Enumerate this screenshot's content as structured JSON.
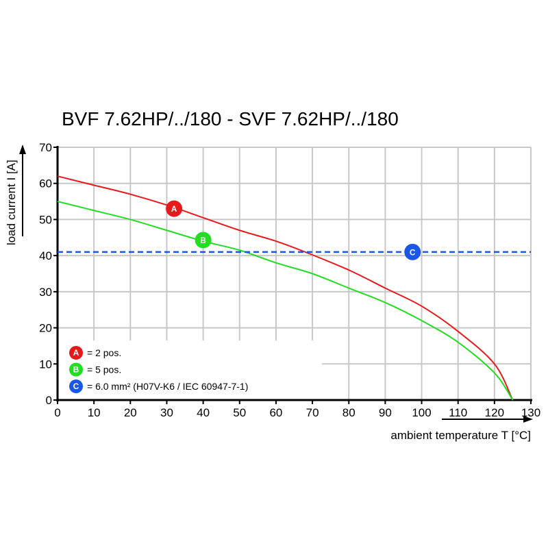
{
  "chart_data": {
    "type": "line",
    "title": "BVF 7.62HP/../180 - SVF 7.62HP/../180",
    "xlabel": "ambient temperature T [°C]",
    "ylabel": "load current I [A]",
    "xlim": [
      0,
      130
    ],
    "ylim": [
      0,
      70
    ],
    "xticks": [
      0,
      10,
      20,
      30,
      40,
      50,
      60,
      70,
      80,
      90,
      100,
      110,
      120,
      130
    ],
    "yticks": [
      0,
      10,
      20,
      30,
      40,
      50,
      60,
      70
    ],
    "grid": true,
    "legend_position": "bottom-left",
    "series": [
      {
        "name": "A",
        "legend": "= 2 pos.",
        "color": "#e8191b",
        "marker_x": 32,
        "marker_y": 53,
        "x": [
          0,
          10,
          20,
          30,
          40,
          50,
          60,
          68,
          80,
          90,
          100,
          110,
          120,
          125
        ],
        "y": [
          62,
          59.5,
          57,
          54,
          50.5,
          47,
          44,
          41,
          36,
          31,
          26,
          19,
          10,
          0
        ]
      },
      {
        "name": "B",
        "legend": "= 5 pos.",
        "color": "#22dd22",
        "marker_x": 40,
        "marker_y": 44.3,
        "x": [
          0,
          10,
          20,
          30,
          40,
          50,
          60,
          70,
          80,
          90,
          100,
          110,
          120,
          125
        ],
        "y": [
          55,
          52.5,
          50,
          47,
          44,
          41.5,
          38,
          35,
          31,
          27,
          22,
          16,
          7.5,
          0
        ]
      },
      {
        "name": "C",
        "legend": "= 6.0 mm² (H07V-K6 / IEC 60947-7-1)",
        "color": "#1a56e8",
        "dashed": true,
        "marker_x": 97.5,
        "marker_y": 41,
        "x": [
          0,
          130
        ],
        "y": [
          41,
          41
        ]
      }
    ]
  }
}
